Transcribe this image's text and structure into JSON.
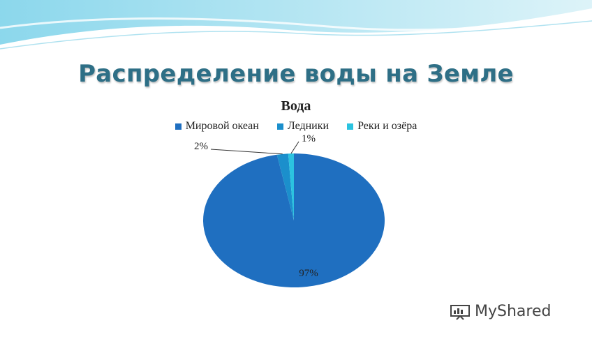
{
  "slide": {
    "title": "Распределение воды на Земле"
  },
  "chart_data": {
    "type": "pie",
    "title": "Вода",
    "legend_position": "top",
    "slices": [
      {
        "name": "Мировой океан",
        "value": 97,
        "label": "97%",
        "color": "#1f6fc0"
      },
      {
        "name": "Ледники",
        "value": 2,
        "label": "2%",
        "color": "#1b8fcc"
      },
      {
        "name": "Реки и озёра",
        "value": 1,
        "label": "1%",
        "color": "#2bc3e0"
      }
    ]
  },
  "watermark": {
    "text": "MyShared",
    "icon": "presentation-board-icon"
  },
  "colors": {
    "title": "#2e6f86",
    "wave_light": "#bfe8f2",
    "wave_dark": "#5cc7e2"
  }
}
